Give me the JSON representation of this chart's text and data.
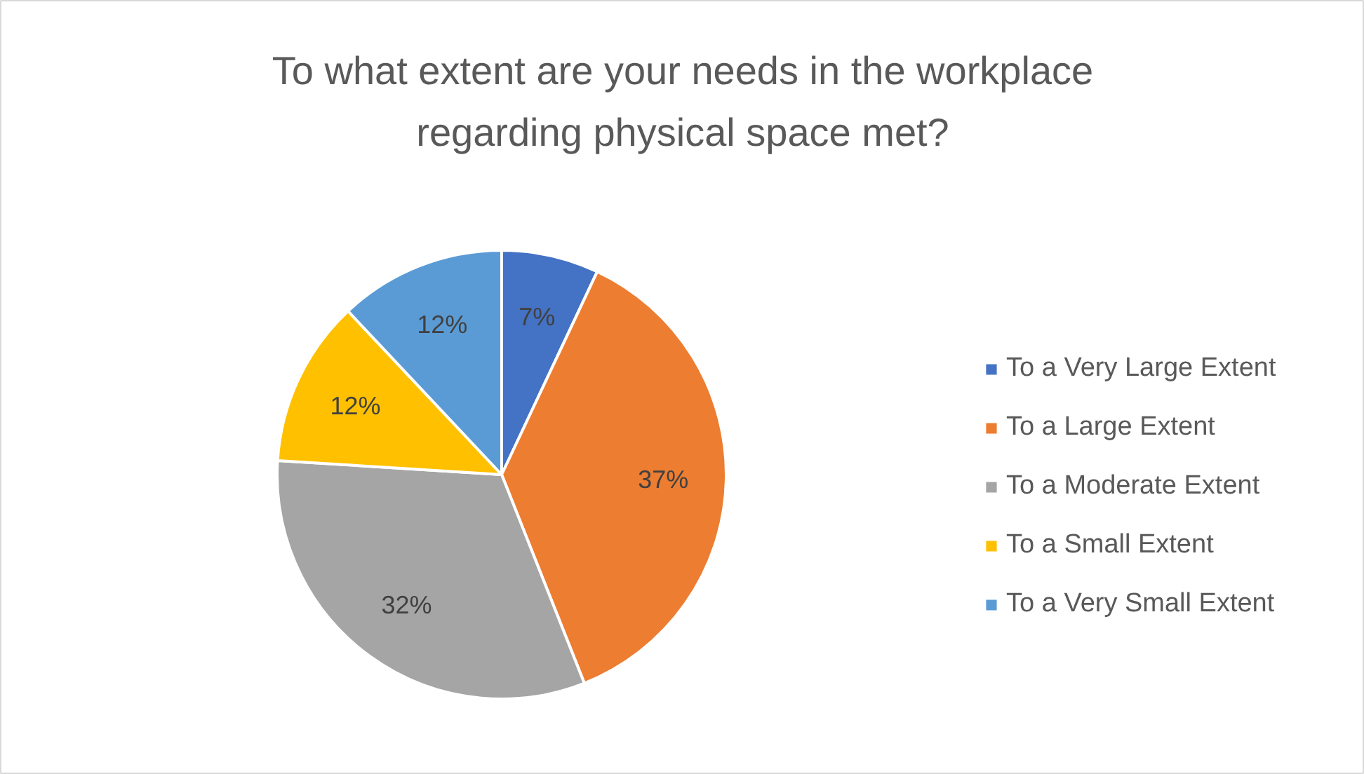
{
  "chart_data": {
    "type": "pie",
    "title": "To what extent are your needs in the workplace regarding physical space met?",
    "categories": [
      "To a Very Large Extent",
      "To a Large Extent",
      "To a Moderate Extent",
      "To a Small Extent",
      "To a Very Small Extent"
    ],
    "values": [
      7,
      37,
      32,
      12,
      12
    ],
    "colors": [
      "#4472c4",
      "#ed7d31",
      "#a5a5a5",
      "#ffc000",
      "#5b9bd5"
    ],
    "value_labels": [
      "7%",
      "37%",
      "32%",
      "12%",
      "12%"
    ],
    "legend": "right"
  }
}
